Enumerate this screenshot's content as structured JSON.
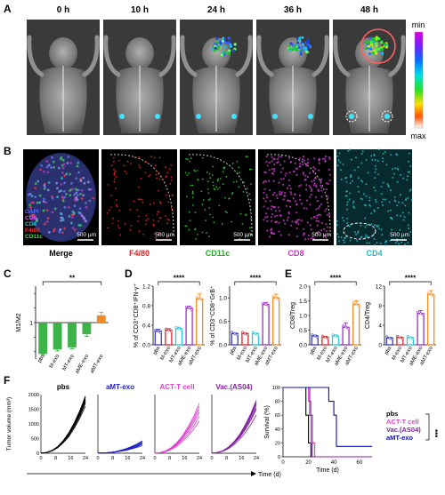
{
  "panel_letters": {
    "a": "A",
    "b": "B",
    "c": "C",
    "d": "D",
    "e": "E",
    "f": "F"
  },
  "panel_a": {
    "times": [
      "0 h",
      "10 h",
      "24 h",
      "36 h",
      "48 h"
    ],
    "colorbar": {
      "min_label": "min",
      "max_label": "max"
    }
  },
  "panel_b": {
    "legend": [
      {
        "text": "DAPI",
        "color": "#4e6bff"
      },
      {
        "text": "CD8",
        "color": "#ff55ff"
      },
      {
        "text": "CD4",
        "color": "#28d8d8"
      },
      {
        "text": "F4/80",
        "color": "#ff3030"
      },
      {
        "text": "CD11c",
        "color": "#40e040"
      }
    ],
    "scale_bar": "500 μm",
    "captions": [
      {
        "text": "Merge",
        "color": "#000000"
      },
      {
        "text": "F4/80",
        "color": "#e02020"
      },
      {
        "text": "CD11c",
        "color": "#20b020"
      },
      {
        "text": "CD8",
        "color": "#c030c0"
      },
      {
        "text": "CD4",
        "color": "#20b8c8"
      }
    ],
    "tiles": [
      {
        "bg": "#0e1a2e",
        "dot": "#6a8cff"
      },
      {
        "bg": "#050505",
        "dot": "#ff2a2a"
      },
      {
        "bg": "#050505",
        "dot": "#3cd43c"
      },
      {
        "bg": "#050505",
        "dot": "#d040d0"
      },
      {
        "bg": "#062a2e",
        "dot": "#30d0d8"
      }
    ]
  },
  "chart_data": [
    {
      "panel": "C",
      "type": "bar",
      "categories": [
        "pbs",
        "M-exo",
        "MT-exo",
        "aME-exo",
        "aMT-exo"
      ],
      "values": [
        0.57,
        0.63,
        0.66,
        0.84,
        1.1
      ],
      "errors": [
        0.01,
        0.02,
        0.02,
        0.03,
        0.04
      ],
      "colors": [
        "#3db34a",
        "#3db34a",
        "#3db34a",
        "#3db34a",
        "#f08a24"
      ],
      "baseline": 1.0,
      "ylabel": "M1/M2",
      "ylim": [
        0.5,
        1.5
      ],
      "yticks": [
        0.6,
        0.8,
        1.0,
        1.2,
        1.4
      ],
      "ytick_labels": [
        "",
        "",
        "1",
        "",
        ""
      ],
      "significance": "**"
    },
    {
      "panel": "D1",
      "type": "bar",
      "categories": [
        "pbs",
        "M-exo",
        "MT-exo",
        "aME-exo",
        "aMT-exo"
      ],
      "values": [
        0.28,
        0.3,
        0.33,
        0.75,
        0.94
      ],
      "errors": [
        0.04,
        0.03,
        0.03,
        0.04,
        0.1
      ],
      "colors": [
        "#3a3acc",
        "#e02030",
        "#28c8d8",
        "#9a30c8",
        "#f08a24"
      ],
      "ylabel": "% of CD3⁺CD8⁺IFN-γ⁺",
      "ylim": [
        0,
        1.2
      ],
      "yticks": [
        0,
        0.4,
        0.8,
        1.2
      ],
      "ytick_labels": [
        "0.0",
        "0.4",
        "0.8",
        "1.2"
      ],
      "significance": "****"
    },
    {
      "panel": "D2",
      "type": "bar",
      "categories": [
        "pbs",
        "M-exo",
        "MT-exo",
        "aME-exo",
        "aMT-exo"
      ],
      "values": [
        0.24,
        0.24,
        0.24,
        0.86,
        1.0
      ],
      "errors": [
        0.01,
        0.01,
        0.01,
        0.04,
        0.08
      ],
      "colors": [
        "#3a3acc",
        "#e02030",
        "#28c8d8",
        "#9a30c8",
        "#f08a24"
      ],
      "ylabel": "% of CD3⁺CD8⁺GrB⁺",
      "ylim": [
        0,
        1.25
      ],
      "yticks": [
        0,
        0.5,
        1.0
      ],
      "ytick_labels": [
        "0.0",
        "0.5",
        "1.0"
      ],
      "significance": "****"
    },
    {
      "panel": "E1",
      "type": "bar",
      "categories": [
        "pbs",
        "M-exo",
        "MT-exo",
        "aME-exo",
        "aMT-exo"
      ],
      "values": [
        0.3,
        0.26,
        0.3,
        0.6,
        1.38
      ],
      "errors": [
        0.03,
        0.03,
        0.04,
        0.15,
        0.12
      ],
      "colors": [
        "#3a3acc",
        "#e02030",
        "#28c8d8",
        "#9a30c8",
        "#f08a24"
      ],
      "ylabel": "CD8/Treg",
      "ylim": [
        0,
        2.0
      ],
      "yticks": [
        0,
        0.5,
        1.0,
        1.5,
        2.0
      ],
      "ytick_labels": [
        "0.0",
        "0.5",
        "1.0",
        "1.5",
        "2.0"
      ],
      "significance": "****"
    },
    {
      "panel": "E2",
      "type": "bar",
      "categories": [
        "pbs",
        "M-exo",
        "MT-exo",
        "aME-exo",
        "aMT-exo"
      ],
      "values": [
        1.4,
        1.5,
        1.5,
        6.4,
        10.3
      ],
      "errors": [
        0.1,
        0.1,
        0.1,
        0.6,
        0.8
      ],
      "colors": [
        "#3a3acc",
        "#e02030",
        "#28c8d8",
        "#9a30c8",
        "#f08a24"
      ],
      "ylabel": "CD4/Treg",
      "ylim": [
        0,
        12
      ],
      "yticks": [
        0,
        4,
        8,
        12
      ],
      "ytick_labels": [
        "0",
        "4",
        "8",
        "12"
      ],
      "significance": "****"
    },
    {
      "panel": "F-growth",
      "type": "line",
      "groups": [
        {
          "name": "pbs",
          "color": "#000000",
          "final": [
            1700,
            1800,
            1850,
            1900,
            1950,
            1600,
            1750
          ]
        },
        {
          "name": "aMT-exo",
          "color": "#2020c0",
          "final": [
            300,
            350,
            380,
            420,
            260,
            330
          ]
        },
        {
          "name": "ACT-T cell",
          "color": "#e040d0",
          "final": [
            1400,
            1500,
            1250,
            1600,
            1700,
            1100
          ]
        },
        {
          "name": "Vac.(AS04)",
          "color": "#8020a0",
          "final": [
            1500,
            1700,
            1800,
            1650,
            1300,
            1550,
            1750
          ]
        }
      ],
      "x": [
        0,
        8,
        16,
        24
      ],
      "x_ticks": [
        "0",
        "8",
        "16",
        "24"
      ],
      "ylabel": "Tumor volume (mm³)",
      "yticks": [
        0,
        500,
        1000,
        1500,
        2000
      ],
      "ytick_labels": [
        "0",
        "500",
        "1000",
        "1500",
        "2000"
      ],
      "xlabel": "Time (d)"
    },
    {
      "panel": "F-survival",
      "type": "line",
      "series": [
        {
          "name": "pbs",
          "color": "#000000",
          "steps": [
            [
              0,
              100
            ],
            [
              18,
              100
            ],
            [
              18,
              60
            ],
            [
              20,
              60
            ],
            [
              20,
              20
            ],
            [
              22,
              20
            ],
            [
              22,
              0
            ],
            [
              70,
              0
            ]
          ]
        },
        {
          "name": "ACT-T cell",
          "color": "#e040d0",
          "steps": [
            [
              0,
              100
            ],
            [
              20,
              100
            ],
            [
              20,
              80
            ],
            [
              22,
              80
            ],
            [
              22,
              20
            ],
            [
              25,
              20
            ],
            [
              25,
              0
            ],
            [
              70,
              0
            ]
          ]
        },
        {
          "name": "Vac.(AS04)",
          "color": "#8020a0",
          "steps": [
            [
              0,
              100
            ],
            [
              21,
              100
            ],
            [
              21,
              60
            ],
            [
              23,
              60
            ],
            [
              23,
              0
            ],
            [
              70,
              0
            ]
          ]
        },
        {
          "name": "aMT-exo",
          "color": "#1010b0",
          "steps": [
            [
              0,
              100
            ],
            [
              36,
              100
            ],
            [
              36,
              80
            ],
            [
              40,
              80
            ],
            [
              40,
              60
            ],
            [
              42,
              60
            ],
            [
              42,
              15
            ],
            [
              70,
              15
            ]
          ]
        }
      ],
      "ylabel": "Survival (%)",
      "xlabel": "Time (d)",
      "xlim": [
        0,
        70
      ],
      "ylim": [
        0,
        100
      ],
      "x_ticks": [
        "0",
        "20",
        "40",
        "60"
      ],
      "y_ticks": [
        "0",
        "20",
        "40",
        "60",
        "80",
        "100"
      ],
      "legend": [
        {
          "text": "pbs",
          "color": "#000000"
        },
        {
          "text": "ACT-T cell",
          "color": "#e040d0"
        },
        {
          "text": "Vac.(AS04)",
          "color": "#8020a0"
        },
        {
          "text": "aMT-exo",
          "color": "#1010b0"
        }
      ],
      "significance": "***"
    }
  ]
}
